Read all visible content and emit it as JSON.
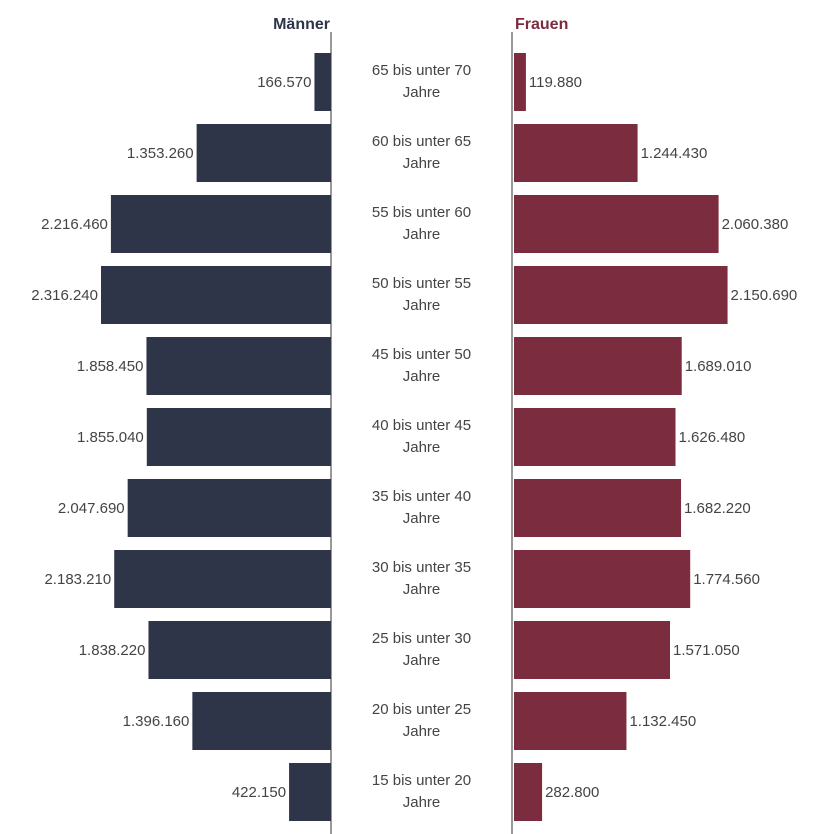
{
  "chart_data": {
    "type": "bar",
    "orientation": "horizontal",
    "layout": "population-pyramid",
    "categories": [
      [
        "65 bis unter 70",
        "Jahre"
      ],
      [
        "60 bis unter 65",
        "Jahre"
      ],
      [
        "55 bis unter 60",
        "Jahre"
      ],
      [
        "50 bis unter 55",
        "Jahre"
      ],
      [
        "45 bis unter 50",
        "Jahre"
      ],
      [
        "40 bis unter 45",
        "Jahre"
      ],
      [
        "35 bis unter 40",
        "Jahre"
      ],
      [
        "30 bis unter 35",
        "Jahre"
      ],
      [
        "25 bis unter 30",
        "Jahre"
      ],
      [
        "20 bis unter 25",
        "Jahre"
      ],
      [
        "15 bis unter 20",
        "Jahre"
      ]
    ],
    "series": [
      {
        "name": "Männer",
        "side": "left",
        "color": "#2e3549",
        "values": [
          166570,
          1353260,
          2216460,
          2316240,
          1858450,
          1855040,
          2047690,
          2183210,
          1838220,
          1396160,
          422150
        ],
        "labels": [
          "166.570",
          "1.353.260",
          "2.216.460",
          "2.316.240",
          "1.858.450",
          "1.855.040",
          "2.047.690",
          "2.183.210",
          "1.838.220",
          "1.396.160",
          "422.150"
        ]
      },
      {
        "name": "Frauen",
        "side": "right",
        "color": "#7b2c3e",
        "values": [
          119880,
          1244430,
          2060380,
          2150690,
          1689010,
          1626480,
          1682220,
          1774560,
          1571050,
          1132450,
          282800
        ],
        "labels": [
          "119.880",
          "1.244.430",
          "2.060.380",
          "2.150.690",
          "1.689.010",
          "1.626.480",
          "1.682.220",
          "1.774.560",
          "1.571.050",
          "1.132.450",
          "282.800"
        ]
      }
    ],
    "grid": false,
    "legend": "none"
  }
}
